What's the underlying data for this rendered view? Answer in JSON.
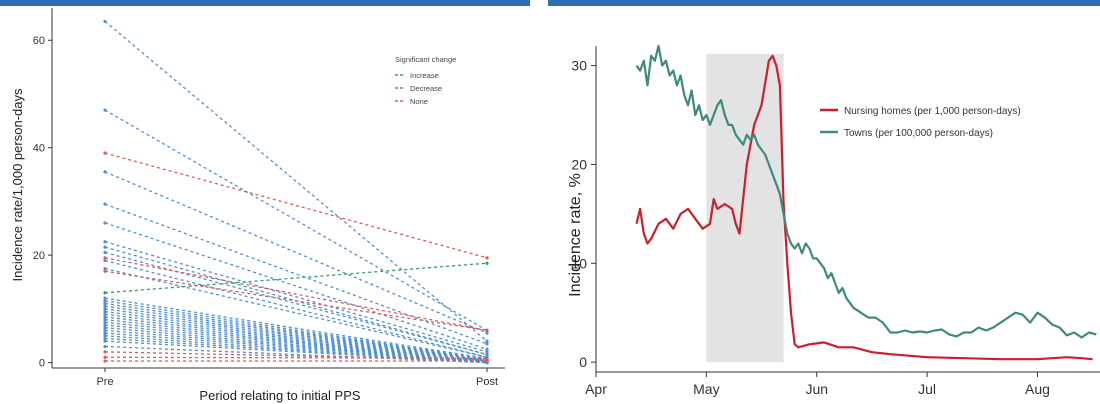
{
  "colors": {
    "topbar": "#2e6fb4",
    "increase": "#2ca25f",
    "decrease": "#4f8fd6",
    "none": "#e05a5a",
    "nursing": "#cc1f2b",
    "towns": "#3d8a7e",
    "shade": "#e3e3e3"
  },
  "chart_data": [
    {
      "type": "line",
      "title": "",
      "xlabel": "Period relating to initial PPS",
      "ylabel": "Incidence rate/1,000 person-days",
      "x": [
        "Pre",
        "Post"
      ],
      "ylim": [
        -1,
        66
      ],
      "yticks": [
        0,
        20,
        40,
        60
      ],
      "grid": false,
      "legend": {
        "title": "Significant change",
        "position": "top-right",
        "items": [
          {
            "label": "Increase",
            "color": "#2ca25f"
          },
          {
            "label": "Decrease",
            "color": "#4f8fd6"
          },
          {
            "label": "None",
            "color": "#e05a5a"
          }
        ]
      },
      "series": [
        {
          "group": "Decrease",
          "values": [
            63.5,
            4
          ]
        },
        {
          "group": "Decrease",
          "values": [
            47,
            6
          ]
        },
        {
          "group": "None",
          "values": [
            39,
            19.5
          ]
        },
        {
          "group": "Decrease",
          "values": [
            35.5,
            5.5
          ]
        },
        {
          "group": "Decrease",
          "values": [
            29.5,
            3.5
          ]
        },
        {
          "group": "Decrease",
          "values": [
            26,
            2.5
          ]
        },
        {
          "group": "Decrease",
          "values": [
            22.5,
            2
          ]
        },
        {
          "group": "Decrease",
          "values": [
            21.5,
            1.5
          ]
        },
        {
          "group": "Decrease",
          "values": [
            20.5,
            1.5
          ]
        },
        {
          "group": "None",
          "values": [
            19.5,
            6
          ]
        },
        {
          "group": "Decrease",
          "values": [
            19,
            1
          ]
        },
        {
          "group": "Decrease",
          "values": [
            17.5,
            1
          ]
        },
        {
          "group": "None",
          "values": [
            17,
            6
          ]
        },
        {
          "group": "Increase",
          "values": [
            13,
            18.5
          ]
        },
        {
          "group": "Decrease",
          "values": [
            12,
            0.8
          ]
        },
        {
          "group": "Decrease",
          "values": [
            11.5,
            0.6
          ]
        },
        {
          "group": "Decrease",
          "values": [
            11,
            0.5
          ]
        },
        {
          "group": "Decrease",
          "values": [
            10.5,
            0.5
          ]
        },
        {
          "group": "Decrease",
          "values": [
            10,
            0.4
          ]
        },
        {
          "group": "Decrease",
          "values": [
            9.5,
            0.4
          ]
        },
        {
          "group": "Decrease",
          "values": [
            9,
            0.3
          ]
        },
        {
          "group": "Decrease",
          "values": [
            8.5,
            0.3
          ]
        },
        {
          "group": "Decrease",
          "values": [
            8,
            0.2
          ]
        },
        {
          "group": "Decrease",
          "values": [
            7.5,
            0.2
          ]
        },
        {
          "group": "Decrease",
          "values": [
            7,
            0.2
          ]
        },
        {
          "group": "Decrease",
          "values": [
            6.5,
            0.1
          ]
        },
        {
          "group": "Decrease",
          "values": [
            6,
            0.1
          ]
        },
        {
          "group": "Decrease",
          "values": [
            5.5,
            0.1
          ]
        },
        {
          "group": "Decrease",
          "values": [
            5,
            0
          ]
        },
        {
          "group": "Decrease",
          "values": [
            4.5,
            0
          ]
        },
        {
          "group": "Decrease",
          "values": [
            4,
            0
          ]
        },
        {
          "group": "Decrease",
          "values": [
            3,
            0
          ]
        },
        {
          "group": "None",
          "values": [
            2,
            0.5
          ]
        },
        {
          "group": "None",
          "values": [
            1,
            0.8
          ]
        },
        {
          "group": "None",
          "values": [
            0.3,
            0.3
          ]
        }
      ]
    },
    {
      "type": "line",
      "title": "",
      "xlabel": "",
      "ylabel": "Incidence rate, %",
      "x_ticks": [
        "Apr",
        "May",
        "Jun",
        "Jul",
        "Aug"
      ],
      "xlim": [
        0,
        137
      ],
      "ylim": [
        -1,
        33
      ],
      "yticks": [
        0,
        10,
        20,
        30
      ],
      "shaded_region": [
        30,
        51
      ],
      "grid": false,
      "legend": {
        "position": "top-right"
      },
      "series": [
        {
          "name": "Nursing homes (per 1,000 person-days)",
          "color": "#cc1f2b",
          "x": [
            11,
            12,
            13,
            14,
            15,
            17,
            19,
            21,
            23,
            25,
            27,
            29,
            31,
            32,
            33,
            35,
            37,
            38,
            39,
            41,
            43,
            45,
            47,
            48,
            49,
            50,
            51,
            52,
            53,
            54,
            55,
            58,
            62,
            66,
            70,
            75,
            80,
            90,
            100,
            110,
            120,
            128,
            132,
            135
          ],
          "y": [
            14,
            15.5,
            13,
            12,
            12.5,
            14,
            14.5,
            13.5,
            15,
            15.5,
            14.5,
            13.5,
            14,
            16.5,
            15.5,
            16,
            15.5,
            14,
            13,
            20,
            24,
            26,
            30.5,
            31,
            30,
            28,
            16,
            10,
            5,
            1.8,
            1.5,
            1.8,
            2,
            1.5,
            1.5,
            1,
            0.8,
            0.5,
            0.4,
            0.3,
            0.3,
            0.5,
            0.4,
            0.3
          ]
        },
        {
          "name": "Towns (per 100,000 person-days)",
          "color": "#3d8a7e",
          "x": [
            11,
            12,
            13,
            14,
            15,
            16,
            17,
            18,
            19,
            20,
            21,
            22,
            23,
            24,
            25,
            26,
            27,
            28,
            29,
            30,
            31,
            32,
            33,
            34,
            35,
            36,
            37,
            38,
            39,
            40,
            41,
            42,
            43,
            44,
            45,
            46,
            47,
            48,
            49,
            50,
            51,
            52,
            53,
            54,
            55,
            56,
            57,
            58,
            59,
            60,
            61,
            62,
            63,
            64,
            65,
            66,
            67,
            68,
            69,
            70,
            72,
            74,
            76,
            78,
            80,
            82,
            84,
            86,
            88,
            90,
            92,
            94,
            96,
            98,
            100,
            102,
            104,
            106,
            108,
            110,
            112,
            114,
            116,
            118,
            120,
            122,
            124,
            126,
            128,
            130,
            132,
            134,
            136
          ],
          "y": [
            30,
            29.5,
            30.5,
            28,
            31,
            30.5,
            32,
            30,
            30.5,
            29,
            29.5,
            28,
            29,
            27,
            26,
            27.5,
            25,
            26,
            24.5,
            25,
            24,
            25,
            26,
            26.5,
            25,
            24,
            24,
            23,
            22.5,
            22,
            23,
            22.5,
            23,
            22,
            21.5,
            21,
            20,
            19,
            18,
            17,
            15,
            13,
            12,
            11.5,
            12,
            11,
            12,
            11.5,
            10.5,
            10.5,
            10,
            9.5,
            8.5,
            9,
            8,
            7,
            7.5,
            6.5,
            6,
            5.5,
            5,
            4.5,
            4.5,
            4,
            3,
            3,
            3.2,
            3,
            3.1,
            3,
            3.2,
            3.3,
            2.8,
            2.6,
            3,
            3,
            3.5,
            3.2,
            3.5,
            4,
            4.5,
            5,
            4.8,
            4,
            5,
            4.5,
            3.8,
            3.5,
            2.7,
            3,
            2.5,
            3,
            2.8
          ]
        }
      ]
    }
  ]
}
